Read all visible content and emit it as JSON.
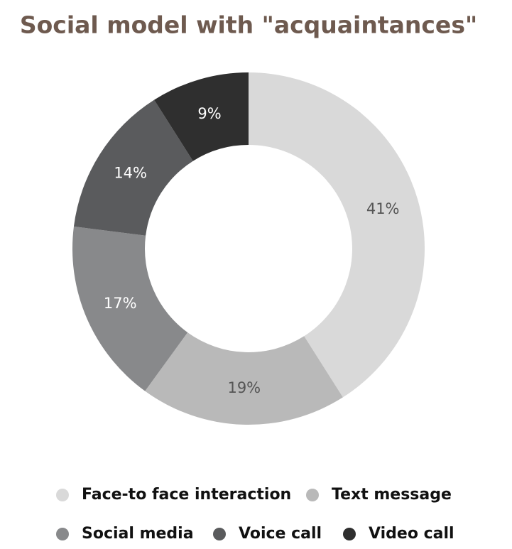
{
  "chart_data": {
    "type": "donut",
    "title": "Social model with \"acquaintances\"",
    "categories": [
      "Face-to face interaction",
      "Text message",
      "Social media",
      "Voice call",
      "Video call"
    ],
    "values": [
      41,
      19,
      17,
      14,
      9
    ],
    "value_labels": [
      "41%",
      "19%",
      "17%",
      "14%",
      "9%"
    ],
    "colors": [
      "#d9d9d9",
      "#b9b9b9",
      "#88898b",
      "#5a5b5d",
      "#2f2f2f"
    ]
  }
}
